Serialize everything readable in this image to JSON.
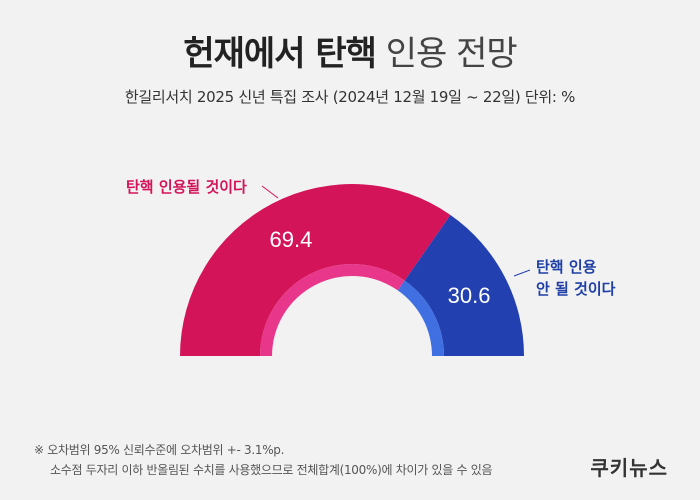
{
  "header": {
    "title_bold": "헌재에서 탄핵",
    "title_light": "인용 전망",
    "subtitle": "한길리서치 2025 신년 특집 조사 (2024년 12월 19일 ~ 22일) 단위: %"
  },
  "chart_data": {
    "type": "pie",
    "variant": "half-donut",
    "unit": "%",
    "slices": [
      {
        "label": "탄핵 인용될 것이다",
        "value": 69.4,
        "color": "#d41459",
        "inner_color": "#e8368a"
      },
      {
        "label": "탄핵 인용 안 될 것이다",
        "value": 30.6,
        "color": "#2340b0",
        "inner_color": "#3f6fe0"
      }
    ]
  },
  "labels": {
    "left": "탄핵 인용될 것이다",
    "right_line1": "탄핵 인용",
    "right_line2": "안 될 것이다"
  },
  "footer": {
    "note_line1": "※ 오차범위 95% 신뢰수준에 오차범위 +- 3.1%p.",
    "note_line2": "소수점 두자리 이하 반올림된 수치를 사용했으므로 전체합계(100%)에 차이가 있을 수 있음",
    "brand": "쿠키뉴스"
  }
}
